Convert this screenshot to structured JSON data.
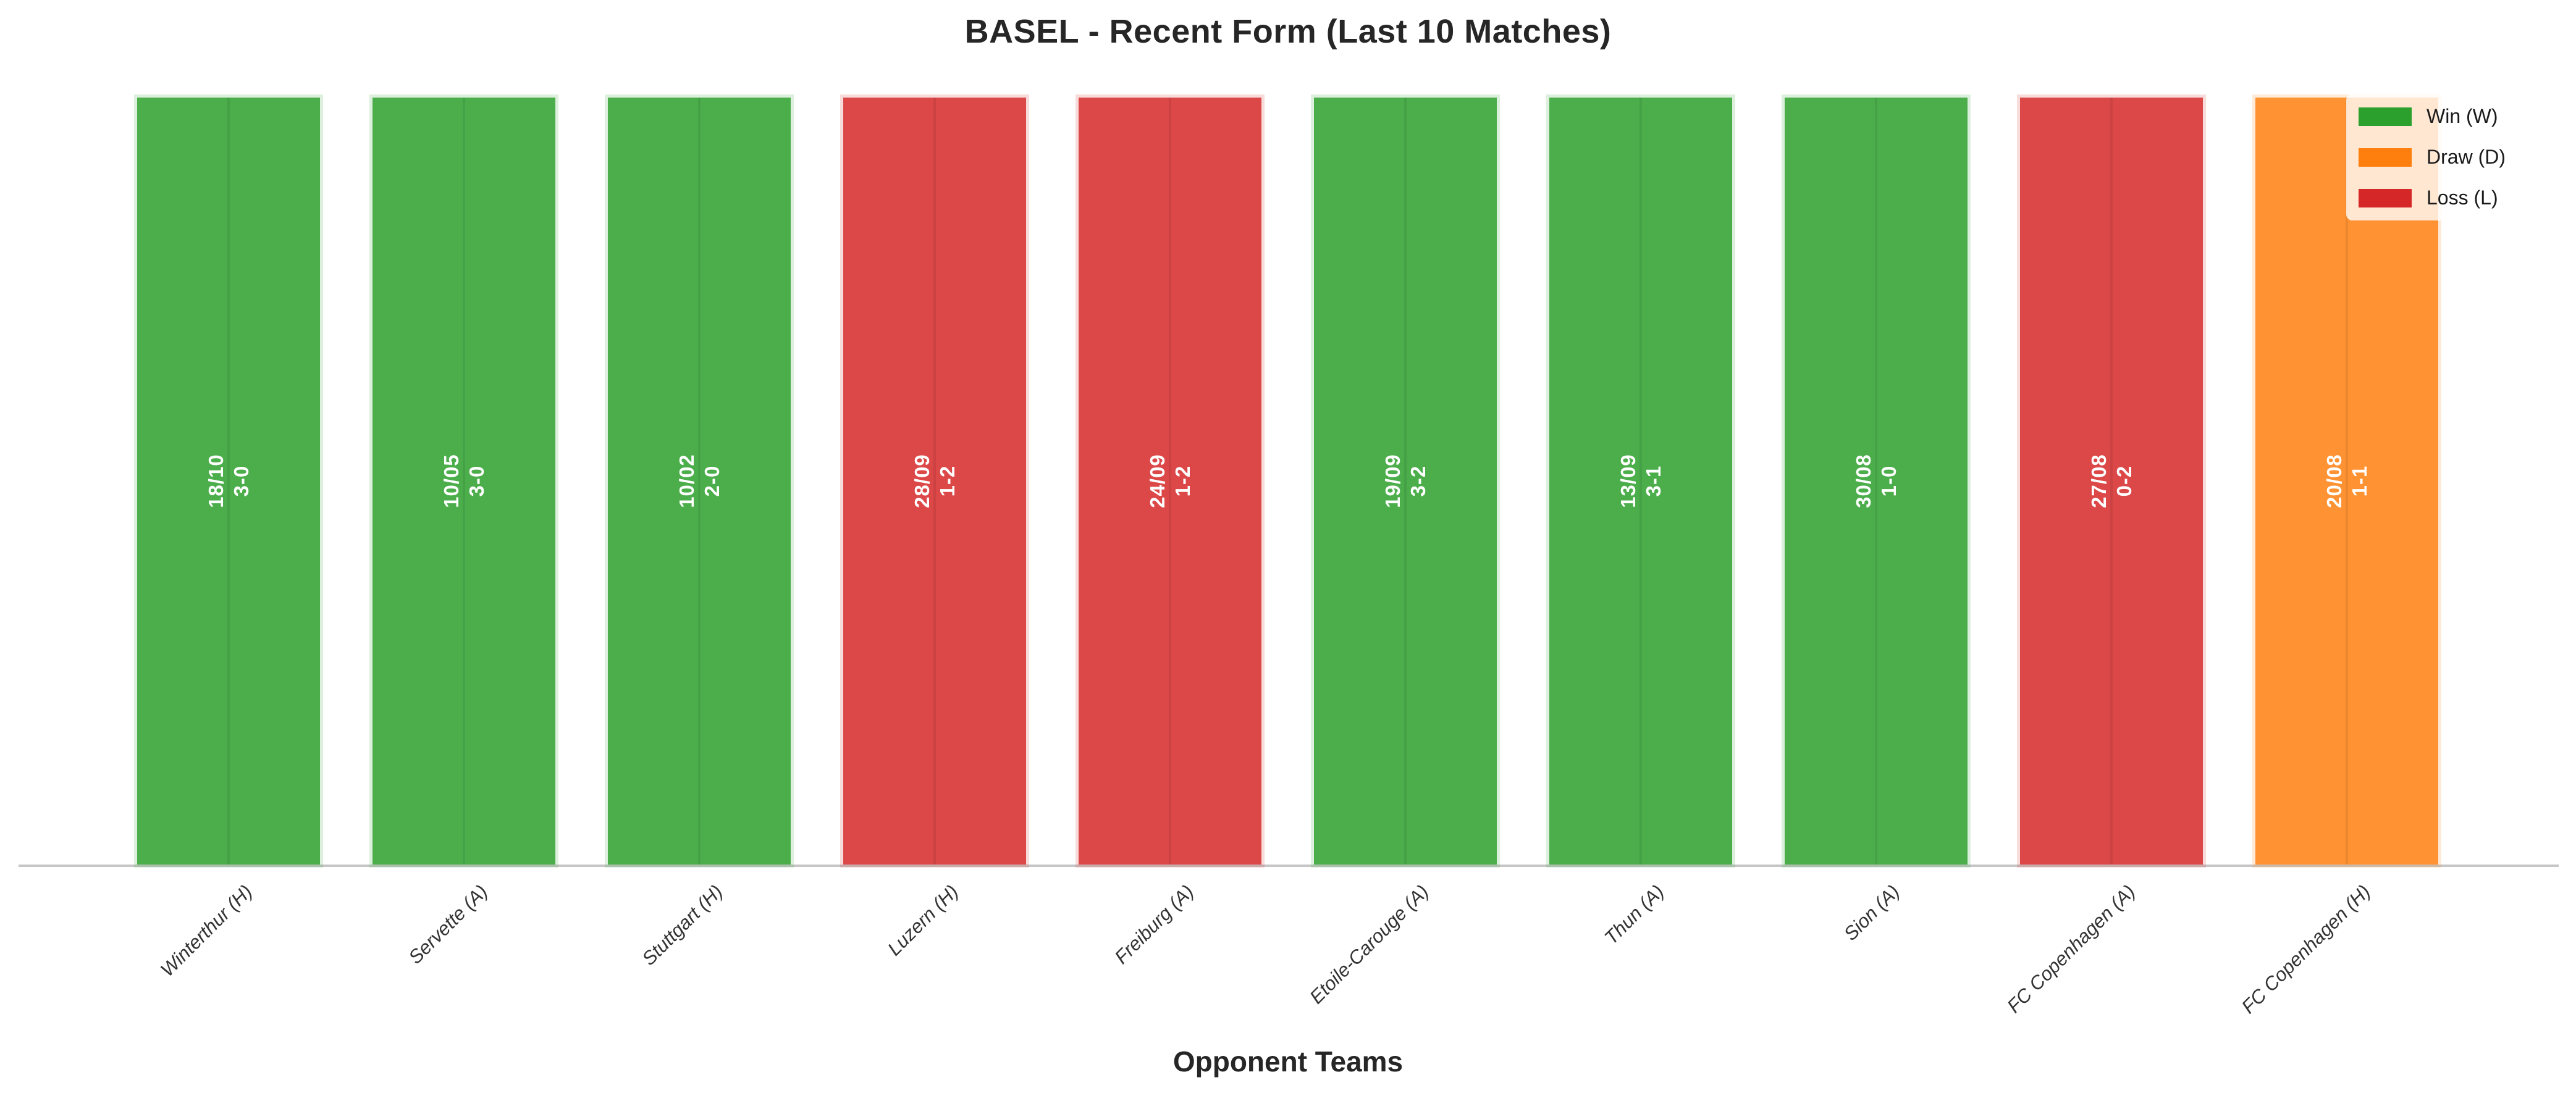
{
  "chart_data": {
    "type": "bar",
    "title": "BASEL - Recent Form (Last 10 Matches)",
    "xlabel": "Opponent Teams",
    "ylabel": "",
    "ylim": [
      0,
      1
    ],
    "grid": "vertical gridline at each bar center, visible through semi-transparent bars",
    "legend_position": "upper right",
    "bar_alpha": 0.85,
    "categories": [
      "Winterthur (H)",
      "Servette (A)",
      "Stuttgart (H)",
      "Luzern (H)",
      "Freiburg (A)",
      "Etoile-Carouge (A)",
      "Thun (A)",
      "Sion (A)",
      "FC Copenhagen (A)",
      "FC Copenhagen (H)"
    ],
    "values": [
      1,
      1,
      1,
      1,
      1,
      1,
      1,
      1,
      1,
      1
    ],
    "matches": [
      {
        "opponent": "Winterthur (H)",
        "date": "18/10",
        "score": "3-0",
        "result": "W"
      },
      {
        "opponent": "Servette (A)",
        "date": "10/05",
        "score": "3-0",
        "result": "W"
      },
      {
        "opponent": "Stuttgart (H)",
        "date": "10/02",
        "score": "2-0",
        "result": "W"
      },
      {
        "opponent": "Luzern (H)",
        "date": "28/09",
        "score": "1-2",
        "result": "L"
      },
      {
        "opponent": "Freiburg (A)",
        "date": "24/09",
        "score": "1-2",
        "result": "L"
      },
      {
        "opponent": "Etoile-Carouge (A)",
        "date": "19/09",
        "score": "3-2",
        "result": "W"
      },
      {
        "opponent": "Thun (A)",
        "date": "13/09",
        "score": "3-1",
        "result": "W"
      },
      {
        "opponent": "Sion (A)",
        "date": "30/08",
        "score": "1-0",
        "result": "W"
      },
      {
        "opponent": "FC Copenhagen (A)",
        "date": "27/08",
        "score": "0-2",
        "result": "L"
      },
      {
        "opponent": "FC Copenhagen (H)",
        "date": "20/08",
        "score": "1-1",
        "result": "D"
      }
    ],
    "result_colors": {
      "W": "#2ca02c",
      "D": "#ff7f0e",
      "L": "#d62728"
    },
    "legend": {
      "items": [
        {
          "label": "Win (W)",
          "color": "#2ca02c"
        },
        {
          "label": "Draw (D)",
          "color": "#ff7f0e"
        },
        {
          "label": "Loss (L)",
          "color": "#d62728"
        }
      ]
    }
  }
}
